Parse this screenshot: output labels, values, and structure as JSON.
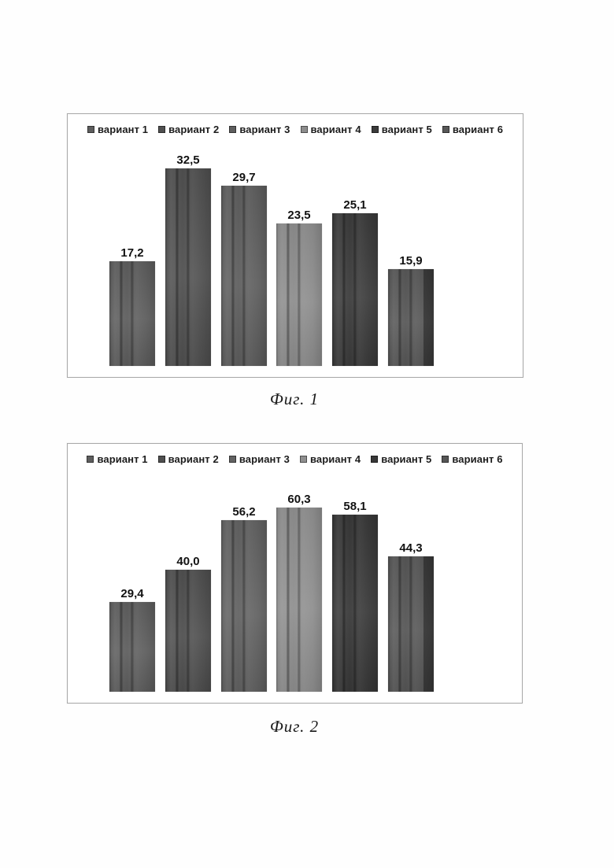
{
  "chart_data": [
    {
      "id": "fig1",
      "type": "bar",
      "title": "",
      "caption": "Фиг. 1",
      "categories": [
        "вариант 1",
        "вариант 2",
        "вариант 3",
        "вариант 4",
        "вариант 5",
        "вариант 6"
      ],
      "values": [
        17.2,
        32.5,
        29.7,
        23.5,
        25.1,
        15.9
      ],
      "value_labels": [
        "17,2",
        "32,5",
        "29,7",
        "23,5",
        "25,1",
        "15,9"
      ],
      "bar_colors": [
        "#5d5d5d",
        "#505050",
        "#5e5e5e",
        "#8d8d8d",
        "#3b3b3b",
        "#575757"
      ],
      "legend_position": "top",
      "grid": false,
      "axes_visible": false,
      "ylim": [
        0,
        35
      ]
    },
    {
      "id": "fig2",
      "type": "bar",
      "title": "",
      "caption": "Фиг. 2",
      "categories": [
        "вариант 1",
        "вариант 2",
        "вариант 3",
        "вариант 4",
        "вариант 5",
        "вариант 6"
      ],
      "values": [
        29.4,
        40.0,
        56.2,
        60.3,
        58.1,
        44.3
      ],
      "value_labels": [
        "29,4",
        "40,0",
        "56,2",
        "60,3",
        "58,1",
        "44,3"
      ],
      "bar_colors": [
        "#5e5e5e",
        "#4f4f4f",
        "#626262",
        "#8f8f8f",
        "#383838",
        "#565656"
      ],
      "legend_position": "top",
      "grid": false,
      "axes_visible": false,
      "ylim": [
        0,
        65
      ]
    }
  ]
}
